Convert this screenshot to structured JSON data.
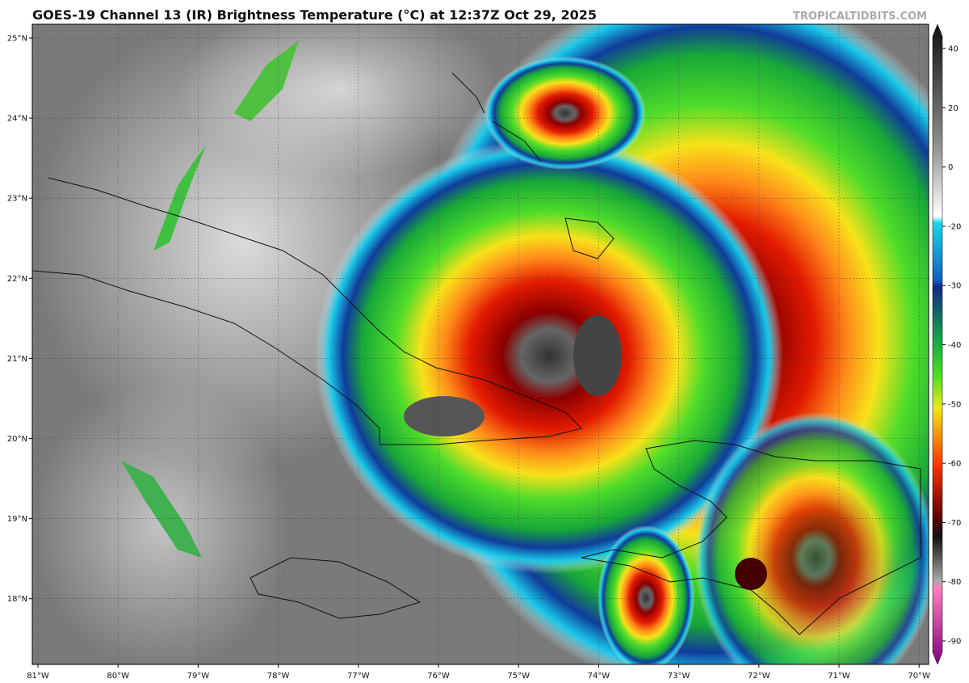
{
  "header": {
    "title": "GOES-19 Channel 13 (IR) Brightness Temperature (°C) at 12:37Z Oct 29, 2025",
    "credit": "TROPICALTIDBITS.COM"
  },
  "map": {
    "lat_labels": [
      "25°N",
      "24°N",
      "23°N",
      "22°N",
      "21°N",
      "20°N",
      "19°N",
      "18°N"
    ],
    "lon_labels": [
      "81°W",
      "80°W",
      "79°W",
      "78°W",
      "77°W",
      "76°W",
      "75°W",
      "74°W",
      "73°W",
      "72°W",
      "71°W",
      "70°W"
    ]
  },
  "colorbar": {
    "ticks": [
      40,
      20,
      0,
      -20,
      -30,
      -40,
      -50,
      -60,
      -70,
      -80,
      -90
    ]
  }
}
